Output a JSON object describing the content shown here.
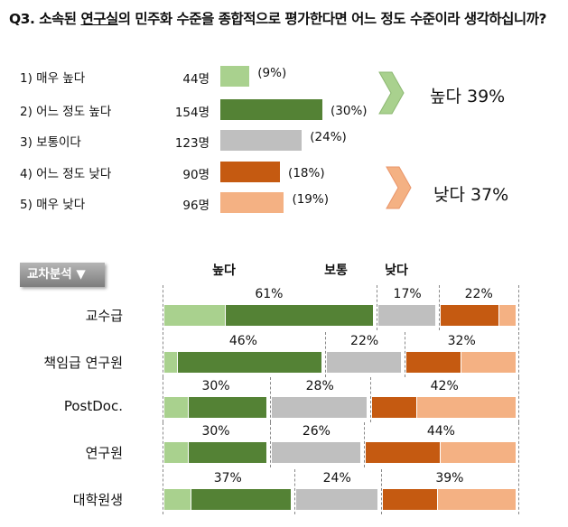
{
  "title": {
    "prefix": "Q3. 소속된 ",
    "underlined": "연구실",
    "suffix": "의 민주화 수준을 종합적으로 평가한다면 어느 정도 수준이라 생각하십니까?"
  },
  "chart_data": [
    {
      "type": "bar",
      "orientation": "horizontal",
      "unit": "명",
      "categories": [
        "1) 매우 높다",
        "2) 어느 정도 높다",
        "3) 보통이다",
        "4) 어느 정도 낮다",
        "5) 매우 낮다"
      ],
      "values": [
        44,
        154,
        123,
        90,
        96
      ],
      "value_labels": [
        "44명",
        "154명",
        "123명",
        "90명",
        "96명"
      ],
      "percent_labels": [
        "(9%)",
        "(30%)",
        "(24%)",
        "(18%)",
        "(19%)"
      ],
      "colors": [
        "#a9d18e",
        "#548235",
        "#bfbfbf",
        "#c55a11",
        "#f4b183"
      ],
      "summary": [
        {
          "label": "높다 39%",
          "color": "#a9d18e"
        },
        {
          "label": "낮다 37%",
          "color": "#f4b183"
        }
      ]
    },
    {
      "type": "bar",
      "orientation": "horizontal",
      "stacked": true,
      "button": "교차분석 ▼",
      "groups": [
        "높다",
        "보통",
        "낮다"
      ],
      "categories": [
        "교수급",
        "책임급 연구원",
        "PostDoc.",
        "연구원",
        "대학원생"
      ],
      "group_labels": [
        [
          "61%",
          "17%",
          "22%"
        ],
        [
          "46%",
          "22%",
          "32%"
        ],
        [
          "30%",
          "28%",
          "42%"
        ],
        [
          "30%",
          "26%",
          "44%"
        ],
        [
          "37%",
          "24%",
          "39%"
        ]
      ],
      "series": [
        {
          "values": [
            18,
            4,
            7,
            7,
            8
          ],
          "color": "#a9d18e"
        },
        {
          "values": [
            43,
            42,
            23,
            23,
            29
          ],
          "color": "#548235"
        },
        {
          "values": [
            17,
            22,
            28,
            26,
            24
          ],
          "color": "#bfbfbf"
        },
        {
          "values": [
            17,
            16,
            13,
            22,
            16
          ],
          "color": "#c55a11"
        },
        {
          "values": [
            5,
            16,
            29,
            22,
            23
          ],
          "color": "#f4b183"
        }
      ]
    }
  ]
}
